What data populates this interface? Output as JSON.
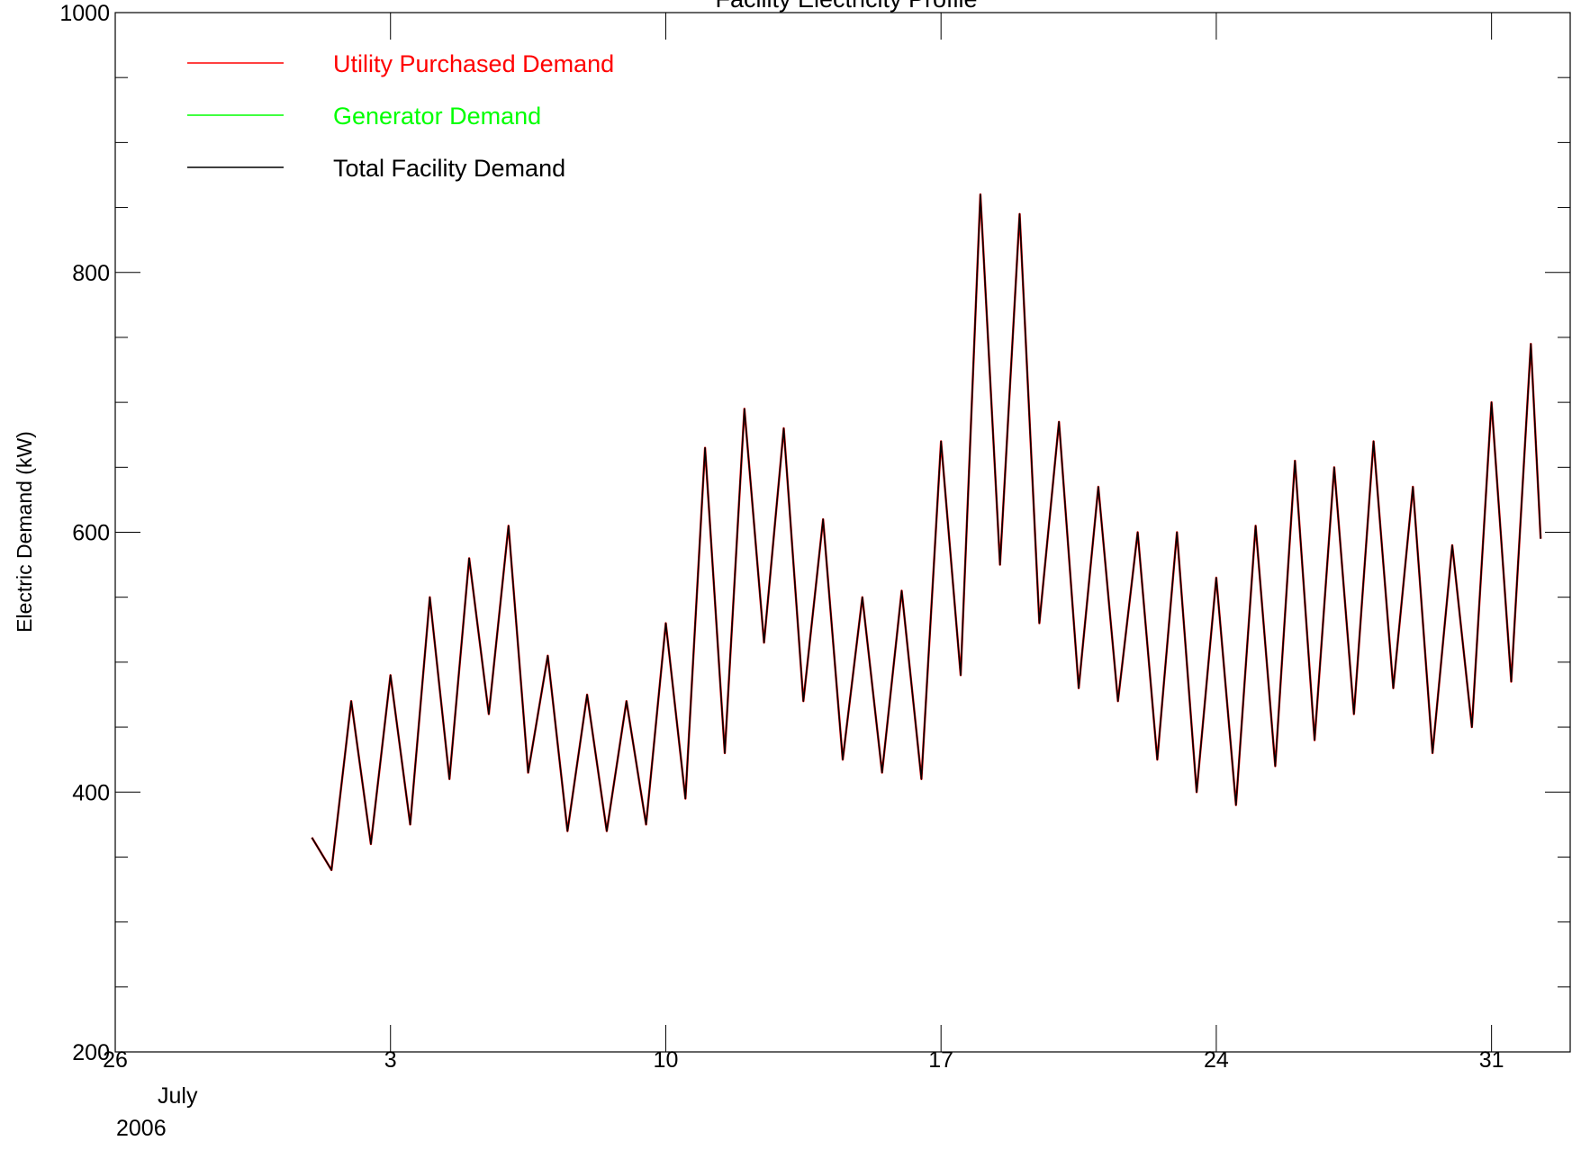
{
  "chart_data": {
    "type": "line",
    "title": "Facility Electricity Profile",
    "ylabel": "Electric Demand (kW)",
    "xlabel": "",
    "ylim": [
      200,
      1000
    ],
    "yticks_major": [
      200,
      400,
      600,
      800,
      1000
    ],
    "yticks_minor_step": 50,
    "xlim": [
      "2006-06-26",
      "2006-08-02"
    ],
    "xticks": [
      {
        "date": "2006-06-26",
        "label": "26"
      },
      {
        "date": "2006-07-03",
        "label": "3"
      },
      {
        "date": "2006-07-10",
        "label": "10"
      },
      {
        "date": "2006-07-17",
        "label": "17"
      },
      {
        "date": "2006-07-24",
        "label": "24"
      },
      {
        "date": "2006-07-31",
        "label": "31"
      }
    ],
    "x_month_label": "July",
    "x_year_label": "2006",
    "grid": false,
    "legend_position": "top-left",
    "series": [
      {
        "name": "Utility Purchased Demand",
        "color": "#ff0000",
        "points": [
          [
            "2006-07-01 00:00",
            365
          ],
          [
            "2006-07-01 12:00",
            340
          ],
          [
            "2006-07-02 00:00",
            470
          ],
          [
            "2006-07-02 12:00",
            360
          ],
          [
            "2006-07-03 00:00",
            490
          ],
          [
            "2006-07-03 12:00",
            375
          ],
          [
            "2006-07-04 00:00",
            550
          ],
          [
            "2006-07-04 12:00",
            410
          ],
          [
            "2006-07-05 00:00",
            580
          ],
          [
            "2006-07-05 12:00",
            460
          ],
          [
            "2006-07-06 00:00",
            605
          ],
          [
            "2006-07-06 12:00",
            415
          ],
          [
            "2006-07-07 00:00",
            505
          ],
          [
            "2006-07-07 12:00",
            370
          ],
          [
            "2006-07-08 00:00",
            475
          ],
          [
            "2006-07-08 12:00",
            370
          ],
          [
            "2006-07-09 00:00",
            470
          ],
          [
            "2006-07-09 12:00",
            375
          ],
          [
            "2006-07-10 00:00",
            530
          ],
          [
            "2006-07-10 12:00",
            395
          ],
          [
            "2006-07-11 00:00",
            665
          ],
          [
            "2006-07-11 12:00",
            430
          ],
          [
            "2006-07-12 00:00",
            695
          ],
          [
            "2006-07-12 12:00",
            515
          ],
          [
            "2006-07-13 00:00",
            680
          ],
          [
            "2006-07-13 12:00",
            470
          ],
          [
            "2006-07-14 00:00",
            610
          ],
          [
            "2006-07-14 12:00",
            425
          ],
          [
            "2006-07-15 00:00",
            550
          ],
          [
            "2006-07-15 12:00",
            415
          ],
          [
            "2006-07-16 00:00",
            555
          ],
          [
            "2006-07-16 12:00",
            410
          ],
          [
            "2006-07-17 00:00",
            670
          ],
          [
            "2006-07-17 12:00",
            490
          ],
          [
            "2006-07-18 00:00",
            860
          ],
          [
            "2006-07-18 12:00",
            575
          ],
          [
            "2006-07-19 00:00",
            845
          ],
          [
            "2006-07-19 12:00",
            530
          ],
          [
            "2006-07-20 00:00",
            685
          ],
          [
            "2006-07-20 12:00",
            480
          ],
          [
            "2006-07-21 00:00",
            635
          ],
          [
            "2006-07-21 12:00",
            470
          ],
          [
            "2006-07-22 00:00",
            600
          ],
          [
            "2006-07-22 12:00",
            425
          ],
          [
            "2006-07-23 00:00",
            600
          ],
          [
            "2006-07-23 12:00",
            400
          ],
          [
            "2006-07-24 00:00",
            565
          ],
          [
            "2006-07-24 12:00",
            390
          ],
          [
            "2006-07-25 00:00",
            605
          ],
          [
            "2006-07-25 12:00",
            420
          ],
          [
            "2006-07-26 00:00",
            655
          ],
          [
            "2006-07-26 12:00",
            440
          ],
          [
            "2006-07-27 00:00",
            650
          ],
          [
            "2006-07-27 12:00",
            460
          ],
          [
            "2006-07-28 00:00",
            670
          ],
          [
            "2006-07-28 12:00",
            480
          ],
          [
            "2006-07-29 00:00",
            635
          ],
          [
            "2006-07-29 12:00",
            430
          ],
          [
            "2006-07-30 00:00",
            590
          ],
          [
            "2006-07-30 12:00",
            450
          ],
          [
            "2006-07-31 00:00",
            700
          ],
          [
            "2006-07-31 12:00",
            485
          ],
          [
            "2006-08-01 00:00",
            745
          ],
          [
            "2006-08-01 06:00",
            595
          ]
        ]
      },
      {
        "name": "Generator Demand",
        "color": "#00ff00",
        "points": []
      },
      {
        "name": "Total Facility Demand",
        "color": "#000000",
        "points": [
          [
            "2006-07-01 00:00",
            365
          ],
          [
            "2006-07-01 12:00",
            340
          ],
          [
            "2006-07-02 00:00",
            470
          ],
          [
            "2006-07-02 12:00",
            360
          ],
          [
            "2006-07-03 00:00",
            490
          ],
          [
            "2006-07-03 12:00",
            375
          ],
          [
            "2006-07-04 00:00",
            550
          ],
          [
            "2006-07-04 12:00",
            410
          ],
          [
            "2006-07-05 00:00",
            580
          ],
          [
            "2006-07-05 12:00",
            460
          ],
          [
            "2006-07-06 00:00",
            605
          ],
          [
            "2006-07-06 12:00",
            415
          ],
          [
            "2006-07-07 00:00",
            505
          ],
          [
            "2006-07-07 12:00",
            370
          ],
          [
            "2006-07-08 00:00",
            475
          ],
          [
            "2006-07-08 12:00",
            370
          ],
          [
            "2006-07-09 00:00",
            470
          ],
          [
            "2006-07-09 12:00",
            375
          ],
          [
            "2006-07-10 00:00",
            530
          ],
          [
            "2006-07-10 12:00",
            395
          ],
          [
            "2006-07-11 00:00",
            665
          ],
          [
            "2006-07-11 12:00",
            430
          ],
          [
            "2006-07-12 00:00",
            695
          ],
          [
            "2006-07-12 12:00",
            515
          ],
          [
            "2006-07-13 00:00",
            680
          ],
          [
            "2006-07-13 12:00",
            470
          ],
          [
            "2006-07-14 00:00",
            610
          ],
          [
            "2006-07-14 12:00",
            425
          ],
          [
            "2006-07-15 00:00",
            550
          ],
          [
            "2006-07-15 12:00",
            415
          ],
          [
            "2006-07-16 00:00",
            555
          ],
          [
            "2006-07-16 12:00",
            410
          ],
          [
            "2006-07-17 00:00",
            670
          ],
          [
            "2006-07-17 12:00",
            490
          ],
          [
            "2006-07-18 00:00",
            860
          ],
          [
            "2006-07-18 12:00",
            575
          ],
          [
            "2006-07-19 00:00",
            845
          ],
          [
            "2006-07-19 12:00",
            530
          ],
          [
            "2006-07-20 00:00",
            685
          ],
          [
            "2006-07-20 12:00",
            480
          ],
          [
            "2006-07-21 00:00",
            635
          ],
          [
            "2006-07-21 12:00",
            470
          ],
          [
            "2006-07-22 00:00",
            600
          ],
          [
            "2006-07-22 12:00",
            425
          ],
          [
            "2006-07-23 00:00",
            600
          ],
          [
            "2006-07-23 12:00",
            400
          ],
          [
            "2006-07-24 00:00",
            565
          ],
          [
            "2006-07-24 12:00",
            390
          ],
          [
            "2006-07-25 00:00",
            605
          ],
          [
            "2006-07-25 12:00",
            420
          ],
          [
            "2006-07-26 00:00",
            655
          ],
          [
            "2006-07-26 12:00",
            440
          ],
          [
            "2006-07-27 00:00",
            650
          ],
          [
            "2006-07-27 12:00",
            460
          ],
          [
            "2006-07-28 00:00",
            670
          ],
          [
            "2006-07-28 12:00",
            480
          ],
          [
            "2006-07-29 00:00",
            635
          ],
          [
            "2006-07-29 12:00",
            430
          ],
          [
            "2006-07-30 00:00",
            590
          ],
          [
            "2006-07-30 12:00",
            450
          ],
          [
            "2006-07-31 00:00",
            700
          ],
          [
            "2006-07-31 12:00",
            485
          ],
          [
            "2006-08-01 00:00",
            745
          ],
          [
            "2006-08-01 06:00",
            595
          ]
        ]
      }
    ]
  }
}
